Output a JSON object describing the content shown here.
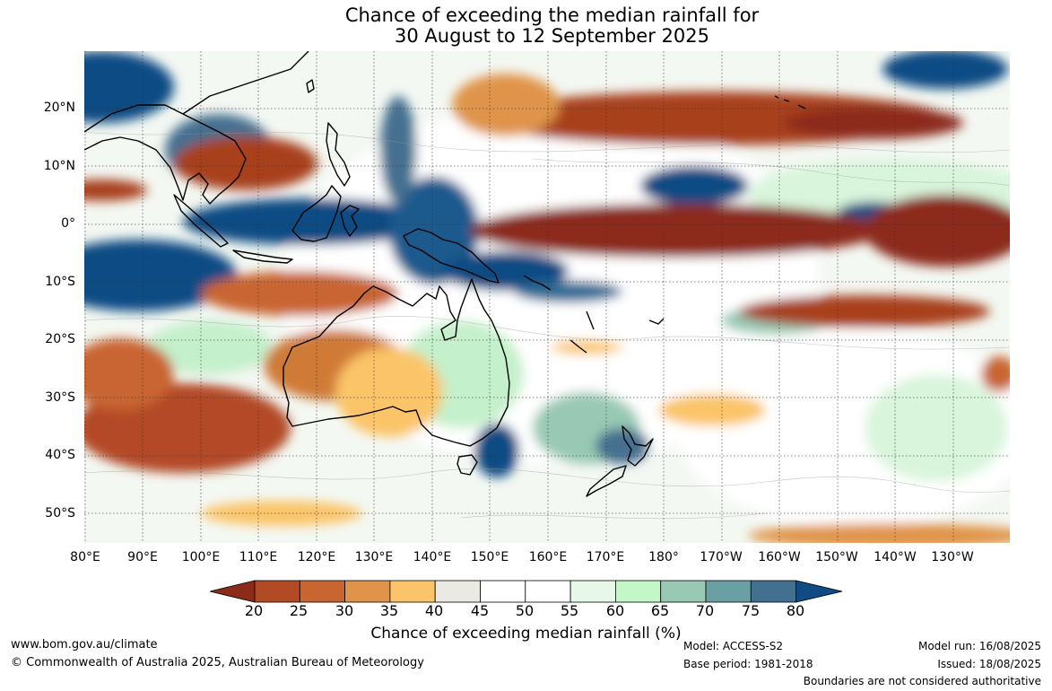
{
  "title": {
    "line1": "Chance of exceeding the median rainfall for",
    "line2": "30 August to 12 September 2025"
  },
  "map": {
    "lat_labels": [
      "20°N",
      "10°N",
      "0°",
      "10°S",
      "20°S",
      "30°S",
      "40°S",
      "50°S"
    ],
    "lon_labels": [
      "80°E",
      "90°E",
      "100°E",
      "110°E",
      "120°E",
      "130°E",
      "140°E",
      "150°E",
      "160°E",
      "170°E",
      "180°",
      "170°W",
      "160°W",
      "150°W",
      "140°W",
      "130°W"
    ]
  },
  "legend": {
    "title": "Chance of exceeding median rainfall (%)",
    "ticks": [
      "20",
      "25",
      "30",
      "35",
      "40",
      "45",
      "50",
      "55",
      "60",
      "65",
      "70",
      "75",
      "80"
    ],
    "colors": [
      "#8c2b1a",
      "#b34a26",
      "#c96530",
      "#e0944a",
      "#fbc468",
      "#ebe9e3",
      "#ffffff",
      "#ffffff",
      "#e8f8e8",
      "#c4f7c8",
      "#98c9b4",
      "#6aa0a4",
      "#44708f",
      "#114b84"
    ]
  },
  "footer": {
    "website": "www.bom.gov.au/climate",
    "copyright": "© Commonwealth of Australia 2025, Australian Bureau of Meteorology",
    "model": "Model: ACCESS-S2",
    "base_period": "Base period: 1981-2018",
    "model_run": "Model run: 16/08/2025",
    "issued": "Issued: 18/08/2025",
    "disclaimer": "Boundaries are not considered authoritative"
  }
}
